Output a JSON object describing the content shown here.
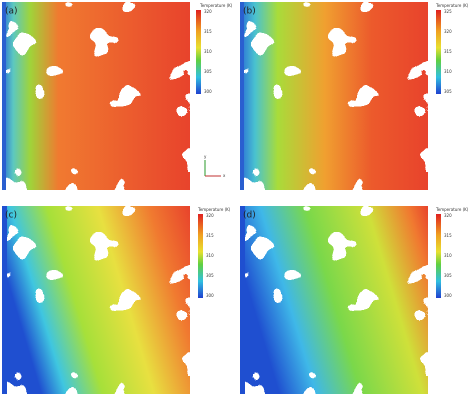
{
  "panels": [
    {
      "label": "(a)",
      "legend_title": "Temperature (K)",
      "ticks": [
        "320",
        "315",
        "310",
        "305",
        "300"
      ]
    },
    {
      "label": "(b)",
      "legend_title": "Temperature (K)",
      "ticks": [
        "325",
        "320",
        "315",
        "310",
        "305"
      ]
    },
    {
      "label": "(c)",
      "legend_title": "Temperature (K)",
      "ticks": [
        "320",
        "315",
        "310",
        "305",
        "300"
      ]
    },
    {
      "label": "(d)",
      "legend_title": "Temperature (K)",
      "ticks": [
        "320",
        "315",
        "310",
        "305",
        "300"
      ]
    }
  ],
  "axes": {
    "y": "y",
    "x": "x"
  }
}
